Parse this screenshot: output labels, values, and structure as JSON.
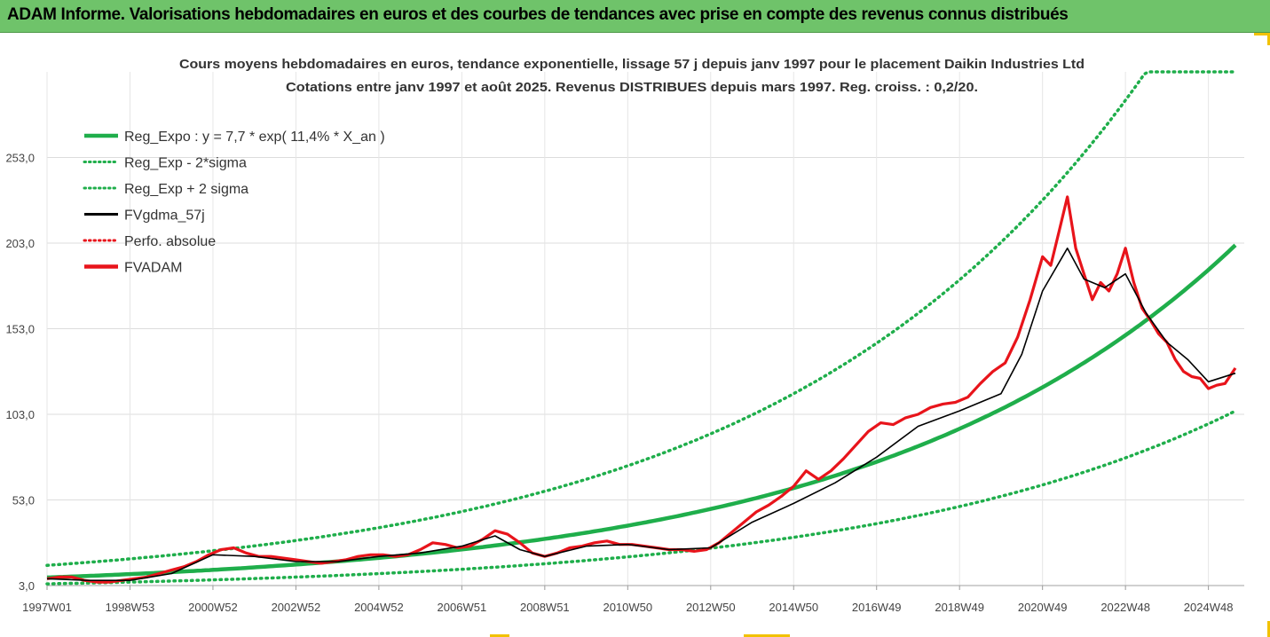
{
  "header": {
    "banner_title": "ADAM Informe. Valorisations hebdomadaires en euros et des courbes de tendances avec prise en compte des revenus connus distribués"
  },
  "colors": {
    "banner_bg": "#6fc36a",
    "accent": "#f2c200",
    "reg_expo": "#1fae4b",
    "sigma": "#1fae4b",
    "fvgdma": "#000000",
    "perfo": "#e8141b",
    "fvadam": "#e8141b"
  },
  "chart_data": {
    "type": "line",
    "title": "Cours moyens hebdomadaires en euros, tendance exponentielle, lissage 57 j depuis janv 1997  pour le placement Daikin Industries Ltd",
    "subtitle": "Cotations entre janv 1997 et août 2025.  Revenus DISTRIBUES depuis mars 1997. Reg. croiss. : 0,2/20.",
    "xlabel": "",
    "ylabel": "",
    "ylim": [
      3.0,
      303.0
    ],
    "yticks": [
      "3,0",
      "53,0",
      "103,0",
      "153,0",
      "203,0",
      "253,0"
    ],
    "x_ticks": [
      {
        "label": "1997W01",
        "year": 1997.0
      },
      {
        "label": "1998W53",
        "year": 1999.0
      },
      {
        "label": "2000W52",
        "year": 2001.0
      },
      {
        "label": "2002W52",
        "year": 2003.0
      },
      {
        "label": "2004W52",
        "year": 2005.0
      },
      {
        "label": "2006W51",
        "year": 2007.0
      },
      {
        "label": "2008W51",
        "year": 2009.0
      },
      {
        "label": "2010W50",
        "year": 2011.0
      },
      {
        "label": "2012W50",
        "year": 2013.0
      },
      {
        "label": "2014W50",
        "year": 2015.0
      },
      {
        "label": "2016W49",
        "year": 2017.0
      },
      {
        "label": "2018W49",
        "year": 2019.0
      },
      {
        "label": "2020W49",
        "year": 2021.0
      },
      {
        "label": "2022W48",
        "year": 2023.0
      },
      {
        "label": "2024W48",
        "year": 2025.0
      }
    ],
    "legend_position": "top-left",
    "legend": [
      {
        "label": "Reg_Expo : y = 7,7 * exp( 11,4% *  X_an )",
        "style": "solid-thick",
        "color": "#1fae4b"
      },
      {
        "label": "Reg_Exp - 2*sigma",
        "style": "dotted",
        "color": "#1fae4b"
      },
      {
        "label": "Reg_Exp + 2 sigma",
        "style": "dotted",
        "color": "#1fae4b"
      },
      {
        "label": "FVgdma_57j",
        "style": "solid",
        "color": "#000000"
      },
      {
        "label": "Perfo. absolue",
        "style": "dotted",
        "color": "#e8141b"
      },
      {
        "label": "FVADAM",
        "style": "solid-thick",
        "color": "#e8141b"
      }
    ],
    "regression": {
      "a": 7.7,
      "b": 0.114,
      "x_start": 1997.0,
      "x_end": 2025.65,
      "lower_factor": 0.52,
      "upper_factor": 1.92,
      "ymax_cap": 303.0
    },
    "series": [
      {
        "name": "FVADAM",
        "x": [
          1997.0,
          1997.3,
          1997.6,
          1997.9,
          1998.2,
          1998.5,
          1998.8,
          1999.1,
          1999.4,
          1999.7,
          2000.0,
          2000.3,
          2000.6,
          2000.9,
          2001.2,
          2001.5,
          2001.8,
          2002.1,
          2002.4,
          2002.7,
          2003.0,
          2003.3,
          2003.6,
          2003.9,
          2004.2,
          2004.5,
          2004.8,
          2005.1,
          2005.4,
          2005.7,
          2006.0,
          2006.3,
          2006.6,
          2006.9,
          2007.2,
          2007.5,
          2007.8,
          2008.1,
          2008.4,
          2008.7,
          2009.0,
          2009.3,
          2009.6,
          2009.9,
          2010.2,
          2010.5,
          2010.8,
          2011.1,
          2011.4,
          2011.7,
          2012.0,
          2012.3,
          2012.6,
          2012.9,
          2013.2,
          2013.5,
          2013.8,
          2014.1,
          2014.4,
          2014.7,
          2015.0,
          2015.3,
          2015.6,
          2015.9,
          2016.2,
          2016.5,
          2016.8,
          2017.1,
          2017.4,
          2017.7,
          2018.0,
          2018.3,
          2018.6,
          2018.9,
          2019.2,
          2019.5,
          2019.8,
          2020.1,
          2020.4,
          2020.7,
          2021.0,
          2021.2,
          2021.4,
          2021.6,
          2021.8,
          2022.0,
          2022.2,
          2022.4,
          2022.6,
          2022.8,
          2023.0,
          2023.2,
          2023.4,
          2023.6,
          2023.8,
          2024.0,
          2024.2,
          2024.4,
          2024.6,
          2024.8,
          2025.0,
          2025.2,
          2025.4,
          2025.65
        ],
        "values": [
          7,
          8,
          8,
          6,
          5,
          5,
          6,
          7,
          8,
          10,
          12,
          14,
          17,
          21,
          24,
          25,
          22,
          20,
          20,
          19,
          18,
          17,
          16,
          17,
          18,
          20,
          21,
          21,
          20,
          21,
          24,
          28,
          27,
          25,
          26,
          30,
          35,
          33,
          28,
          22,
          20,
          22,
          25,
          26,
          28,
          29,
          27,
          27,
          26,
          25,
          24,
          24,
          23,
          24,
          28,
          34,
          40,
          46,
          50,
          55,
          61,
          70,
          65,
          70,
          77,
          85,
          93,
          98,
          97,
          101,
          103,
          107,
          109,
          110,
          113,
          121,
          128,
          133,
          148,
          170,
          195,
          190,
          210,
          230,
          200,
          185,
          170,
          180,
          175,
          185,
          200,
          180,
          165,
          158,
          150,
          145,
          135,
          128,
          125,
          124,
          118,
          120,
          121,
          130
        ]
      },
      {
        "name": "FVgdma_57j",
        "x": [
          1997.0,
          1998.0,
          1999.0,
          2000.0,
          2001.0,
          2002.0,
          2003.0,
          2004.0,
          2005.0,
          2006.0,
          2007.0,
          2007.8,
          2008.4,
          2009.0,
          2010.0,
          2011.0,
          2012.0,
          2013.0,
          2014.0,
          2015.0,
          2016.0,
          2017.0,
          2018.0,
          2019.0,
          2020.0,
          2020.5,
          2021.0,
          2021.6,
          2022.0,
          2022.5,
          2023.0,
          2023.5,
          2024.0,
          2024.5,
          2025.0,
          2025.65
        ],
        "values": [
          7,
          6,
          6,
          10,
          21,
          20,
          17,
          17,
          20,
          22,
          26,
          32,
          24,
          20,
          26,
          27,
          24,
          25,
          40,
          51,
          63,
          78,
          96,
          105,
          115,
          138,
          175,
          200,
          182,
          177,
          185,
          162,
          145,
          135,
          122,
          127
        ]
      }
    ]
  }
}
